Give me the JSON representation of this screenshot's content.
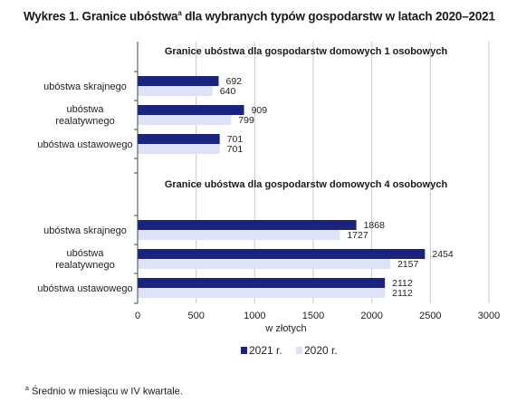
{
  "title": {
    "text": "Wykres 1. Granice ubóstwa",
    "sup": "a",
    "rest": " dla wybranych typów gospodarstw w latach 2020–2021"
  },
  "footnote": {
    "sup": "a",
    "text": " Średnio w miesiącu w IV kwartale."
  },
  "colors": {
    "2021": "#1a237e",
    "2020": "#dde3f4",
    "grid": "#c8c8c8",
    "axis": "#444444"
  },
  "chart_data": {
    "type": "bar",
    "orientation": "horizontal",
    "xlabel": "w złotych",
    "xlim": [
      0,
      3000
    ],
    "xticks": [
      0,
      500,
      1000,
      1500,
      2000,
      2500,
      3000
    ],
    "grid": true,
    "legend_position": "bottom-center",
    "legend": [
      {
        "label": "2021 r.",
        "color": "#1a237e"
      },
      {
        "label": "2020 r.",
        "color": "#dde3f4"
      }
    ],
    "panels": [
      {
        "title": "Granice ubóstwa dla gospodarstw domowych 1 osobowych",
        "categories": [
          [
            "ubóstwa skrajnego"
          ],
          [
            "ubóstwa",
            "realatywnego"
          ],
          [
            "ubóstwa ustawowego"
          ]
        ],
        "series": [
          {
            "name": "2021 r.",
            "values": [
              692,
              909,
              701
            ]
          },
          {
            "name": "2020 r.",
            "values": [
              640,
              799,
              701
            ]
          }
        ]
      },
      {
        "title": "Granice ubóstwa dla gospodarstw domowych 4 osobowych",
        "categories": [
          [
            "ubóstwa skrajnego"
          ],
          [
            "ubóstwa",
            "realatywnego"
          ],
          [
            "ubóstwa ustawowego"
          ]
        ],
        "series": [
          {
            "name": "2021 r.",
            "values": [
              1868,
              2454,
              2112
            ]
          },
          {
            "name": "2020 r.",
            "values": [
              1727,
              2157,
              2112
            ]
          }
        ]
      }
    ]
  }
}
